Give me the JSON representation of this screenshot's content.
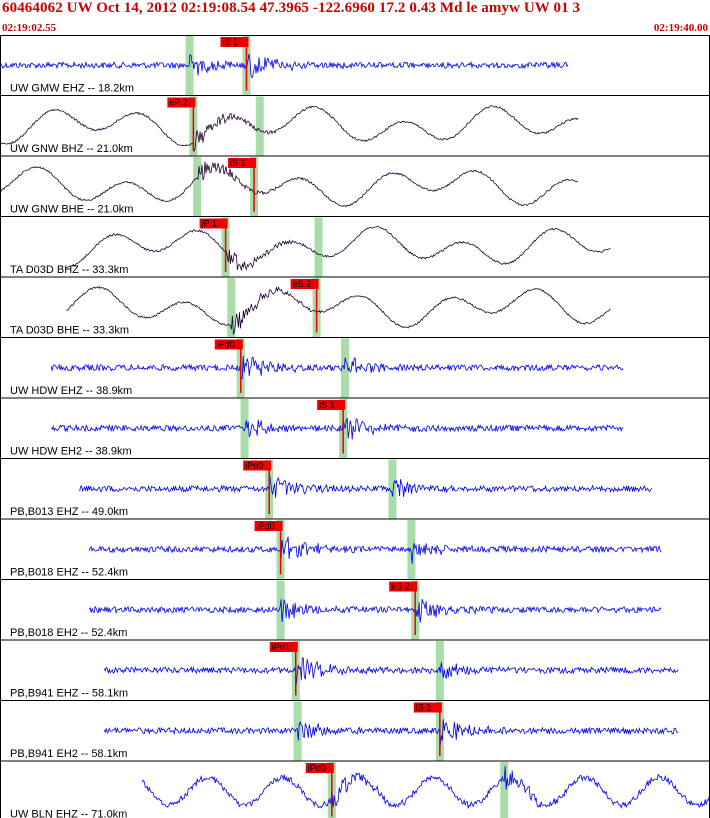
{
  "header": {
    "title": "60464062 UW Oct 14, 2012 02:19:08.54   47.3965 -122.6960 17.2 0.43 Md le amyw UW 01   3",
    "start_time": "02:19:02.55",
    "end_time": "02:19:40.00"
  },
  "colors": {
    "trace_blue": "#0000ee",
    "trace_dark": "#220033",
    "pick_red": "#ee0000",
    "window_green": "#a8dca8",
    "header_red": "#cc0000"
  },
  "chart_data": {
    "type": "seismogram",
    "time_range": [
      "02:19:02.55",
      "02:19:40.00"
    ],
    "time_span_s": 37.45,
    "traces": [
      {
        "label": "UW GMW EHZ -- 18.2km",
        "color": "blue",
        "start_s": 0.0,
        "end_s": 30.0,
        "pick": {
          "label": "iS 1",
          "time_s": 13.0
        },
        "window_s": 10.0
      },
      {
        "label": "UW GNW BHZ -- 21.0km",
        "color": "dark",
        "start_s": 0.0,
        "end_s": 30.5,
        "pick": {
          "label": "eP 2",
          "time_s": 10.2
        },
        "window_s": 13.7
      },
      {
        "label": "UW GNW BHE -- 21.0km",
        "color": "dark",
        "start_s": 0.0,
        "end_s": 30.5,
        "pick": {
          "label": "iS 1",
          "time_s": 13.4
        },
        "window_s": 10.4
      },
      {
        "label": "TA D03D BHZ -- 33.3km",
        "color": "dark",
        "start_s": 3.5,
        "end_s": 32.2,
        "pick": {
          "label": "iP 1",
          "time_s": 11.9
        },
        "window_s": 16.8
      },
      {
        "label": "TA D03D BHE -- 33.3km",
        "color": "dark",
        "start_s": 3.5,
        "end_s": 32.2,
        "pick": {
          "label": "eS 2",
          "time_s": 16.7
        },
        "window_s": 12.2
      },
      {
        "label": "UW HDW EHZ -- 38.9km",
        "color": "blue",
        "start_s": 2.7,
        "end_s": 32.9,
        "pick": {
          "label": "iPd0",
          "time_s": 12.7
        },
        "window_s": 18.2
      },
      {
        "label": "UW HDW EH2 -- 38.9km",
        "color": "blue",
        "start_s": 2.7,
        "end_s": 32.9,
        "pick": {
          "label": "iS 1",
          "time_s": 18.1
        },
        "window_s": 12.9
      },
      {
        "label": "PB,B013 EHZ -- 49.0km",
        "color": "blue",
        "start_s": 4.2,
        "end_s": 34.4,
        "pick": {
          "label": "iPd0",
          "time_s": 14.2
        },
        "window_s": 20.7
      },
      {
        "label": "PB,B018 EHZ -- 52.4km",
        "color": "blue",
        "start_s": 4.7,
        "end_s": 34.9,
        "pick": {
          "label": "iPd0",
          "time_s": 14.8
        },
        "window_s": 21.7
      },
      {
        "label": "PB,B018 EH2 -- 52.4km",
        "color": "blue",
        "start_s": 4.7,
        "end_s": 34.9,
        "pick": {
          "label": "eS 2",
          "time_s": 21.9
        },
        "window_s": 14.8
      },
      {
        "label": "PB,B941 EHZ -- 58.1km",
        "color": "blue",
        "start_s": 5.5,
        "end_s": 35.8,
        "pick": {
          "label": "iPd1",
          "time_s": 15.6
        },
        "window_s": 23.2
      },
      {
        "label": "PB,B941 EH2 -- 58.1km",
        "color": "blue",
        "start_s": 5.5,
        "end_s": 35.8,
        "pick": {
          "label": "iS 1",
          "time_s": 23.2
        },
        "window_s": 15.7
      },
      {
        "label": "UW BLN EHZ -- 71.0km",
        "color": "blue",
        "start_s": 7.5,
        "end_s": 37.45,
        "pick": {
          "label": "iPd0",
          "time_s": 17.5
        },
        "window_s": 26.6
      }
    ]
  }
}
